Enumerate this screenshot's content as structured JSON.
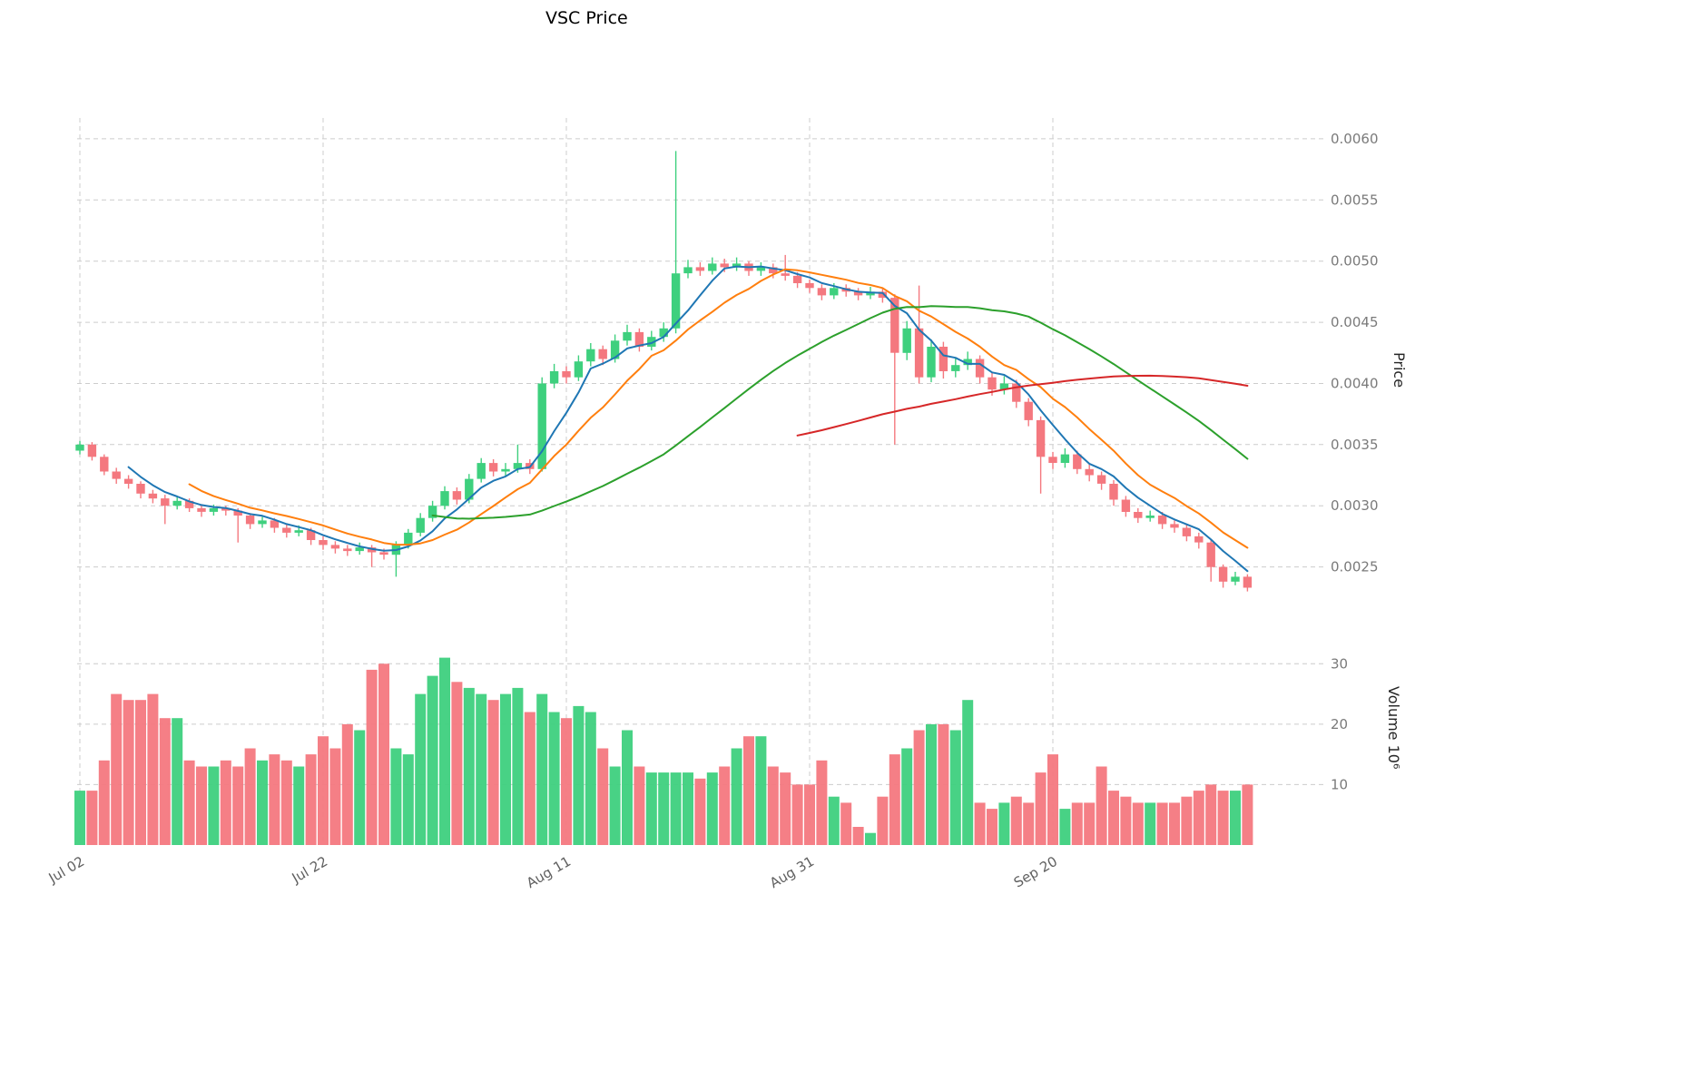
{
  "title": "VSC Price",
  "axes": {
    "price_label": "Price",
    "volume_label": "Volume  10⁶"
  },
  "chart_data": {
    "type": "candlestick",
    "title": "VSC Price",
    "legend": "none",
    "grid": "dashed",
    "note": "open/high/low/close values are in units of price_unit (1e-4). volume is in millions, matching the 10^6 volume axis.",
    "price_unit": 0.0001,
    "x_axis": {
      "ticks": [
        {
          "index": 0,
          "label": "Jul 02"
        },
        {
          "index": 20,
          "label": "Jul 22"
        },
        {
          "index": 40,
          "label": "Aug 11"
        },
        {
          "index": 60,
          "label": "Aug 31"
        },
        {
          "index": 80,
          "label": "Sep 20"
        }
      ]
    },
    "price_axis": {
      "range": [
        0.002,
        0.00617
      ],
      "ticks": [
        {
          "value": 0.0025,
          "label": "0.0025"
        },
        {
          "value": 0.003,
          "label": "0.0030"
        },
        {
          "value": 0.0035,
          "label": "0.0035"
        },
        {
          "value": 0.004,
          "label": "0.0040"
        },
        {
          "value": 0.0045,
          "label": "0.0045"
        },
        {
          "value": 0.005,
          "label": "0.0050"
        },
        {
          "value": 0.0055,
          "label": "0.0055"
        },
        {
          "value": 0.006,
          "label": "0.0060"
        }
      ]
    },
    "volume_axis": {
      "range": [
        0,
        34.7
      ],
      "ticks": [
        {
          "value": 10,
          "label": "10"
        },
        {
          "value": 20,
          "label": "20"
        },
        {
          "value": 30,
          "label": "30"
        }
      ]
    },
    "colors": {
      "up": "#3ed07e",
      "down": "#f4787f",
      "grid": "#cccccc",
      "price_tick_text": "#7a7a7a",
      "x_tick_text": "#5f5f5f"
    },
    "moving_averages": [
      {
        "period": 5,
        "color": "#1f77b4"
      },
      {
        "period": 10,
        "color": "#ff7f0e"
      },
      {
        "period": 30,
        "color": "#2ca02c"
      },
      {
        "period": 60,
        "color": "#d62728"
      }
    ],
    "ohlc": {
      "open": [
        34.5,
        35.0,
        34.0,
        32.8,
        32.2,
        31.8,
        31.0,
        30.6,
        30.0,
        30.4,
        29.8,
        29.5,
        29.8,
        29.6,
        29.2,
        28.5,
        28.8,
        28.2,
        27.8,
        28.0,
        27.2,
        26.8,
        26.5,
        26.3,
        26.6,
        26.2,
        26.0,
        26.8,
        27.8,
        29.0,
        30.0,
        31.2,
        30.5,
        32.2,
        33.5,
        32.8,
        33.0,
        33.5,
        33.0,
        40.0,
        41.0,
        40.5,
        41.8,
        42.8,
        42.0,
        43.5,
        44.2,
        43.0,
        43.8,
        44.5,
        49.0,
        49.5,
        49.2,
        49.8,
        49.5,
        49.8,
        49.2,
        49.5,
        49.0,
        48.8,
        48.2,
        47.8,
        47.2,
        47.8,
        47.5,
        47.2,
        47.5,
        47.0,
        42.5,
        44.5,
        40.5,
        43.0,
        41.0,
        41.5,
        42.0,
        40.5,
        39.5,
        40.0,
        38.5,
        37.0,
        34.0,
        33.5,
        34.2,
        33.0,
        32.5,
        31.8,
        30.5,
        29.5,
        29.0,
        29.2,
        28.5,
        28.2,
        27.5,
        27.0,
        25.0,
        23.8,
        24.2
      ],
      "high": [
        35.3,
        35.2,
        34.2,
        33.1,
        32.5,
        32.0,
        31.3,
        30.9,
        30.7,
        30.6,
        30.1,
        30.1,
        30.0,
        29.8,
        29.4,
        29.1,
        29.0,
        28.5,
        28.4,
        28.2,
        27.5,
        27.1,
        26.8,
        27.0,
        26.8,
        26.5,
        27.1,
        28.1,
        29.4,
        30.4,
        31.6,
        31.5,
        32.6,
        33.9,
        33.8,
        33.5,
        35.0,
        33.8,
        40.5,
        41.6,
        41.4,
        42.3,
        43.3,
        43.1,
        44.0,
        44.8,
        44.5,
        44.3,
        45.0,
        59.0,
        50.1,
        49.9,
        50.3,
        50.2,
        50.3,
        50.0,
        49.9,
        49.8,
        50.5,
        49.1,
        48.5,
        48.1,
        48.2,
        48.1,
        47.8,
        47.9,
        47.8,
        47.3,
        45.1,
        48.0,
        43.6,
        43.4,
        42.1,
        42.6,
        42.3,
        40.9,
        40.6,
        40.3,
        38.8,
        37.3,
        34.4,
        34.7,
        34.5,
        33.4,
        32.8,
        32.1,
        30.8,
        29.8,
        29.6,
        29.5,
        28.8,
        28.5,
        27.8,
        27.2,
        25.2,
        24.6,
        24.4
      ],
      "low": [
        34.2,
        33.7,
        32.5,
        31.8,
        31.4,
        30.6,
        30.2,
        28.5,
        29.7,
        29.5,
        29.1,
        29.2,
        29.2,
        27.0,
        28.1,
        28.2,
        27.8,
        27.4,
        27.5,
        26.8,
        26.4,
        26.1,
        25.9,
        26.0,
        25.0,
        25.6,
        24.2,
        26.5,
        27.5,
        28.7,
        29.7,
        30.1,
        30.2,
        31.9,
        32.4,
        32.4,
        32.7,
        32.6,
        32.8,
        39.6,
        40.0,
        40.2,
        41.4,
        41.5,
        41.7,
        43.1,
        42.6,
        42.7,
        43.4,
        44.1,
        48.6,
        48.8,
        48.9,
        49.1,
        49.2,
        48.8,
        48.8,
        48.6,
        48.4,
        47.8,
        47.4,
        46.8,
        46.9,
        47.1,
        46.8,
        46.9,
        46.6,
        35.0,
        41.9,
        40.0,
        40.1,
        40.4,
        40.5,
        41.1,
        40.0,
        39.0,
        39.1,
        38.0,
        36.5,
        31.0,
        33.0,
        33.1,
        32.6,
        32.0,
        31.3,
        30.0,
        29.1,
        28.6,
        28.7,
        28.1,
        27.8,
        27.1,
        26.5,
        23.8,
        23.3,
        23.5,
        23.0
      ],
      "close": [
        35.0,
        34.0,
        32.8,
        32.2,
        31.8,
        31.0,
        30.6,
        30.0,
        30.4,
        29.8,
        29.5,
        29.8,
        29.6,
        29.2,
        28.5,
        28.8,
        28.2,
        27.8,
        28.0,
        27.2,
        26.8,
        26.5,
        26.3,
        26.6,
        26.2,
        26.0,
        26.8,
        27.8,
        29.0,
        30.0,
        31.2,
        30.5,
        32.2,
        33.5,
        32.8,
        33.0,
        33.5,
        33.0,
        40.0,
        41.0,
        40.5,
        41.8,
        42.8,
        42.0,
        43.5,
        44.2,
        43.0,
        43.8,
        44.5,
        49.0,
        49.5,
        49.2,
        49.8,
        49.5,
        49.8,
        49.2,
        49.5,
        49.0,
        48.8,
        48.2,
        47.8,
        47.2,
        47.8,
        47.5,
        47.2,
        47.5,
        47.0,
        42.5,
        44.5,
        40.5,
        43.0,
        41.0,
        41.5,
        42.0,
        40.5,
        39.5,
        40.0,
        38.5,
        37.0,
        34.0,
        33.5,
        34.2,
        33.0,
        32.5,
        31.8,
        30.5,
        29.5,
        29.0,
        29.2,
        28.5,
        28.2,
        27.5,
        27.0,
        25.0,
        23.8,
        24.2,
        23.3
      ]
    },
    "volume": [
      9,
      9,
      14,
      25,
      24,
      24,
      25,
      21,
      21,
      14,
      13,
      13,
      14,
      13,
      16,
      14,
      15,
      14,
      13,
      15,
      18,
      16,
      20,
      19,
      29,
      30,
      16,
      15,
      25,
      28,
      31,
      27,
      26,
      25,
      24,
      25,
      26,
      22,
      25,
      22,
      21,
      23,
      22,
      16,
      13,
      19,
      13,
      12,
      12,
      12,
      12,
      11,
      12,
      13,
      16,
      18,
      18,
      13,
      12,
      10,
      10,
      14,
      8,
      7,
      3,
      2,
      8,
      15,
      16,
      19,
      20,
      20,
      19,
      24,
      7,
      6,
      7,
      8,
      7,
      12,
      15,
      6,
      7,
      7,
      13,
      9,
      8,
      7,
      7,
      7,
      7,
      8,
      9,
      10,
      9,
      9,
      10
    ]
  }
}
